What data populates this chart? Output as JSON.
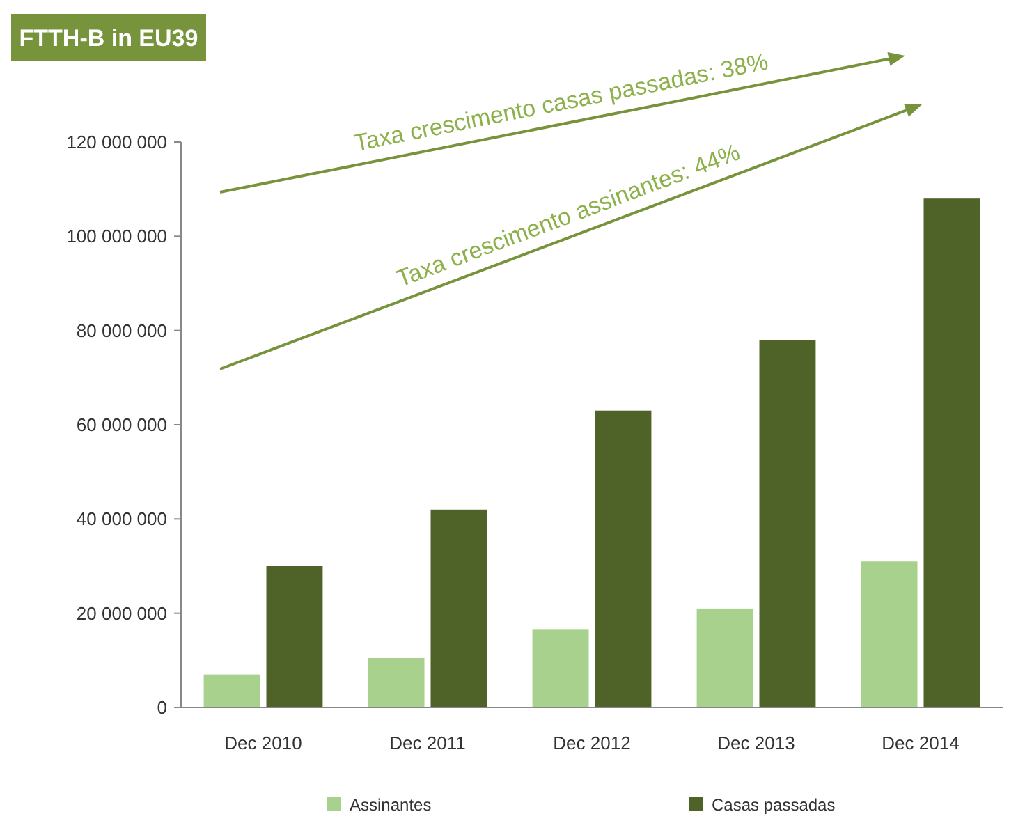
{
  "chart_data": {
    "type": "bar",
    "title": "FTTH-B in EU39",
    "categories": [
      "Dec 2010",
      "Dec 2011",
      "Dec 2012",
      "Dec 2013",
      "Dec 2014"
    ],
    "series": [
      {
        "name": "Assinantes",
        "color": "#a9d18e",
        "values": [
          7000000,
          10500000,
          16500000,
          21000000,
          31000000
        ]
      },
      {
        "name": "Casas passadas",
        "color": "#4f6228",
        "values": [
          30000000,
          42000000,
          63000000,
          78000000,
          108000000
        ]
      }
    ],
    "ylim": [
      0,
      120000000
    ],
    "yticks": [
      {
        "value": 0,
        "label": "0"
      },
      {
        "value": 20000000,
        "label": "20 000 000"
      },
      {
        "value": 40000000,
        "label": "40 000 000"
      },
      {
        "value": 60000000,
        "label": "60 000 000"
      },
      {
        "value": 80000000,
        "label": "80 000 000"
      },
      {
        "value": 100000000,
        "label": "100 000 000"
      },
      {
        "value": 120000000,
        "label": "120 000 000"
      }
    ],
    "annotations": [
      "Taxa crescimento casas passadas: 38%",
      "Taxa crescimento assinantes: 44%"
    ],
    "legend": "bottom",
    "grid": false
  }
}
